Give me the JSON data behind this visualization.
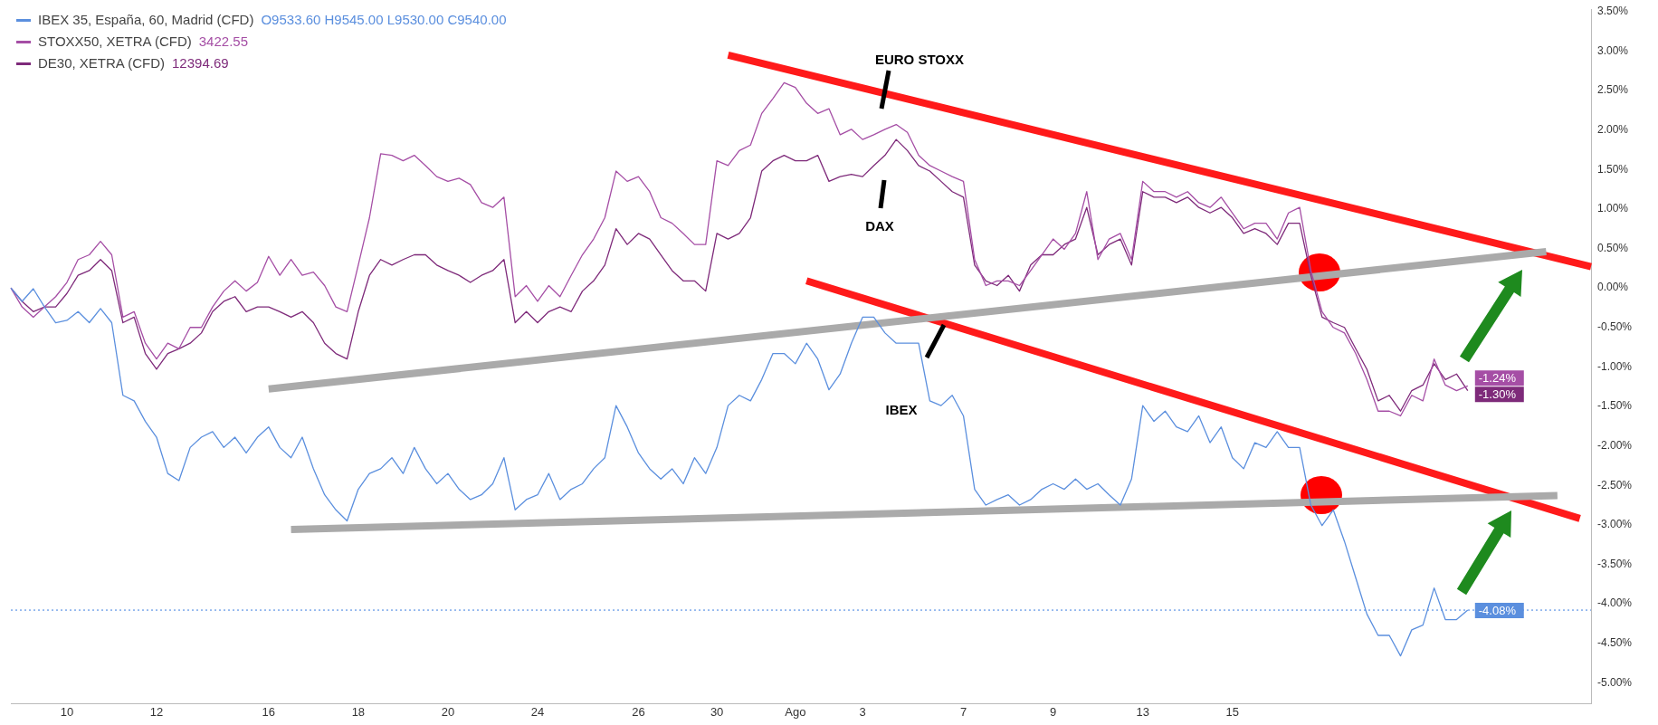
{
  "chart_data": {
    "type": "line",
    "marker": "none",
    "legend": "top left",
    "grid": false,
    "categories": [
      null,
      null,
      null,
      null,
      null,
      "10",
      null,
      null,
      null,
      null,
      null,
      null,
      null,
      "12",
      null,
      null,
      null,
      null,
      null,
      null,
      null,
      null,
      null,
      "16",
      null,
      null,
      null,
      null,
      null,
      null,
      null,
      "18",
      null,
      null,
      null,
      null,
      null,
      null,
      null,
      "20",
      null,
      null,
      null,
      null,
      null,
      null,
      null,
      "24",
      null,
      null,
      null,
      null,
      null,
      null,
      null,
      null,
      "26",
      null,
      null,
      null,
      null,
      null,
      null,
      "30",
      null,
      null,
      null,
      null,
      null,
      null,
      "Ago",
      null,
      null,
      null,
      null,
      null,
      "3",
      null,
      null,
      null,
      null,
      null,
      null,
      null,
      null,
      "7",
      null,
      null,
      null,
      null,
      null,
      null,
      null,
      "9",
      null,
      null,
      null,
      null,
      null,
      null,
      null,
      "13",
      null,
      null,
      null,
      null,
      null,
      null,
      null,
      "15",
      null,
      null,
      null,
      null,
      null,
      null,
      null,
      null,
      null,
      null,
      null,
      null,
      null,
      null,
      null,
      null,
      null,
      null,
      null,
      null,
      null,
      null,
      null,
      null,
      null,
      null,
      null,
      null,
      null,
      null,
      null,
      null
    ],
    "series": [
      {
        "name": "IBEX 35, España, 60, Madrid (CFD)",
        "color": "#5b8fde",
        "values": [
          0,
          -0.17,
          -0.01,
          -0.24,
          -0.44,
          -0.41,
          -0.3,
          -0.44,
          -0.26,
          -0.44,
          -1.36,
          -1.43,
          -1.69,
          -1.89,
          -2.35,
          -2.44,
          -2.02,
          -1.89,
          -1.82,
          -2.02,
          -1.89,
          -2.09,
          -1.89,
          -1.76,
          -2.02,
          -2.15,
          -1.89,
          -2.29,
          -2.62,
          -2.81,
          -2.95,
          -2.55,
          -2.35,
          -2.29,
          -2.15,
          -2.35,
          -2.02,
          -2.29,
          -2.48,
          -2.35,
          -2.55,
          -2.68,
          -2.62,
          -2.48,
          -2.15,
          -2.81,
          -2.68,
          -2.62,
          -2.35,
          -2.68,
          -2.55,
          -2.48,
          -2.29,
          -2.15,
          -1.49,
          -1.76,
          -2.09,
          -2.29,
          -2.42,
          -2.29,
          -2.48,
          -2.15,
          -2.35,
          -2.02,
          -1.49,
          -1.36,
          -1.43,
          -1.16,
          -0.83,
          -0.83,
          -0.96,
          -0.7,
          -0.9,
          -1.29,
          -1.09,
          -0.7,
          -0.37,
          -0.37,
          -0.57,
          -0.7,
          -0.7,
          -0.7,
          -1.43,
          -1.49,
          -1.36,
          -1.62,
          -2.55,
          -2.75,
          -2.68,
          -2.62,
          -2.75,
          -2.68,
          -2.55,
          -2.48,
          -2.55,
          -2.42,
          -2.55,
          -2.48,
          -2.62,
          -2.75,
          -2.42,
          -1.49,
          -1.69,
          -1.56,
          -1.76,
          -1.82,
          -1.62,
          -1.96,
          -1.76,
          -2.15,
          -2.29,
          -1.96,
          -2.02,
          -1.82,
          -2.02,
          -2.02,
          -2.75,
          -3.01,
          -2.81,
          -3.21,
          -3.67,
          -4.13,
          -4.4,
          -4.4,
          -4.66,
          -4.33,
          -4.27,
          -3.8,
          -4.2,
          -4.2,
          -4.08,
          null,
          null,
          null,
          null,
          null,
          null,
          null,
          null,
          null,
          null,
          null
        ],
        "value_labels": [
          null,
          null,
          null,
          null,
          null,
          null,
          null,
          null,
          null,
          null,
          null,
          null,
          null,
          null,
          null,
          null,
          null,
          null,
          null,
          null,
          null,
          null,
          null,
          null,
          null,
          null,
          null,
          null,
          null,
          null,
          null,
          null,
          null,
          null,
          null,
          null,
          null,
          null,
          null,
          null,
          null,
          null,
          null,
          null,
          null,
          null,
          null,
          null,
          null,
          null,
          null,
          null,
          null,
          null,
          null,
          null,
          null,
          null,
          null,
          null,
          null,
          null,
          null,
          null,
          null,
          null,
          null,
          null,
          null,
          null,
          null,
          null,
          null,
          null,
          null,
          null,
          null,
          null,
          null,
          null,
          null,
          null,
          null,
          null,
          null,
          null,
          null,
          null,
          null,
          null,
          null,
          null,
          null,
          null,
          null,
          null,
          null,
          null,
          null,
          null,
          null,
          null,
          null,
          null,
          null,
          null,
          null,
          null,
          null,
          null,
          null,
          null,
          null,
          null,
          null,
          null,
          null,
          null,
          null,
          null,
          null,
          null,
          null,
          null,
          null,
          null,
          null,
          null,
          null,
          null,
          "-4.08%",
          null,
          null,
          null,
          null,
          null,
          null,
          null,
          null,
          null,
          null,
          null
        ]
      },
      {
        "name": "STOXX50, XETRA (CFD)",
        "color": "#a54ea5",
        "values": [
          0,
          -0.24,
          -0.37,
          -0.24,
          -0.11,
          0.07,
          0.36,
          0.42,
          0.59,
          0.42,
          -0.37,
          -0.3,
          -0.7,
          -0.9,
          -0.7,
          -0.77,
          -0.5,
          -0.5,
          -0.24,
          -0.04,
          0.09,
          -0.04,
          0.07,
          0.4,
          0.16,
          0.36,
          0.16,
          0.2,
          0.03,
          -0.24,
          -0.3,
          0.29,
          0.89,
          1.7,
          1.68,
          1.61,
          1.68,
          1.55,
          1.41,
          1.35,
          1.39,
          1.31,
          1.08,
          1.02,
          1.15,
          -0.11,
          0.03,
          -0.17,
          0.03,
          -0.11,
          0.16,
          0.42,
          0.62,
          0.89,
          1.48,
          1.35,
          1.41,
          1.22,
          0.89,
          0.82,
          0.69,
          0.55,
          0.55,
          1.61,
          1.55,
          1.74,
          1.81,
          2.21,
          2.4,
          2.6,
          2.54,
          2.34,
          2.21,
          2.27,
          1.94,
          2.01,
          1.88,
          1.94,
          2.01,
          2.07,
          1.97,
          1.68,
          1.55,
          1.48,
          1.41,
          1.35,
          0.36,
          0.03,
          0.09,
          0.09,
          0.03,
          0.22,
          0.42,
          0.62,
          0.49,
          0.69,
          1.22,
          0.36,
          0.62,
          0.69,
          0.36,
          1.35,
          1.22,
          1.22,
          1.15,
          1.22,
          1.08,
          1.02,
          1.15,
          0.95,
          0.75,
          0.82,
          0.82,
          0.62,
          0.95,
          1.02,
          0.22,
          -0.3,
          -0.5,
          -0.57,
          -0.83,
          -1.16,
          -1.56,
          -1.56,
          -1.62,
          -1.36,
          -1.43,
          -0.9,
          -1.23,
          -1.3,
          -1.24,
          null,
          null,
          null,
          null,
          null,
          null,
          null,
          null,
          null,
          null,
          null
        ],
        "value_labels": [
          null,
          null,
          null,
          null,
          null,
          null,
          null,
          null,
          null,
          null,
          null,
          null,
          null,
          null,
          null,
          null,
          null,
          null,
          null,
          null,
          null,
          null,
          null,
          null,
          null,
          null,
          null,
          null,
          null,
          null,
          null,
          null,
          null,
          null,
          null,
          null,
          null,
          null,
          null,
          null,
          null,
          null,
          null,
          null,
          null,
          null,
          null,
          null,
          null,
          null,
          null,
          null,
          null,
          null,
          null,
          null,
          null,
          null,
          null,
          null,
          null,
          null,
          null,
          null,
          null,
          null,
          null,
          null,
          null,
          null,
          null,
          null,
          null,
          null,
          null,
          null,
          null,
          null,
          null,
          null,
          null,
          null,
          null,
          null,
          null,
          null,
          null,
          null,
          null,
          null,
          null,
          null,
          null,
          null,
          null,
          null,
          null,
          null,
          null,
          null,
          null,
          null,
          null,
          null,
          null,
          null,
          null,
          null,
          null,
          null,
          null,
          null,
          null,
          null,
          null,
          null,
          null,
          null,
          null,
          null,
          null,
          null,
          null,
          null,
          null,
          null,
          null,
          null,
          null,
          null,
          "-1.24%",
          null,
          null,
          null,
          null,
          null,
          null,
          null,
          null,
          null,
          null,
          null
        ]
      },
      {
        "name": "DE30, XETRA (CFD)",
        "color": "#7e2a7a",
        "values": [
          0,
          -0.17,
          -0.3,
          -0.24,
          -0.24,
          -0.07,
          0.16,
          0.22,
          0.36,
          0.22,
          -0.44,
          -0.37,
          -0.83,
          -1.03,
          -0.83,
          -0.77,
          -0.7,
          -0.57,
          -0.3,
          -0.17,
          -0.11,
          -0.3,
          -0.24,
          -0.24,
          -0.3,
          -0.37,
          -0.3,
          -0.44,
          -0.7,
          -0.83,
          -0.9,
          -0.3,
          0.16,
          0.36,
          0.29,
          0.36,
          0.42,
          0.42,
          0.29,
          0.22,
          0.16,
          0.07,
          0.16,
          0.22,
          0.36,
          -0.44,
          -0.3,
          -0.44,
          -0.3,
          -0.24,
          -0.3,
          -0.04,
          0.09,
          0.29,
          0.75,
          0.55,
          0.69,
          0.62,
          0.42,
          0.22,
          0.09,
          0.09,
          -0.04,
          0.69,
          0.62,
          0.69,
          0.89,
          1.48,
          1.61,
          1.68,
          1.61,
          1.61,
          1.68,
          1.35,
          1.41,
          1.44,
          1.41,
          1.55,
          1.68,
          1.88,
          1.74,
          1.55,
          1.48,
          1.35,
          1.22,
          1.15,
          0.29,
          0.09,
          0.03,
          0.16,
          -0.04,
          0.29,
          0.42,
          0.42,
          0.55,
          0.62,
          1.02,
          0.42,
          0.55,
          0.62,
          0.29,
          1.22,
          1.15,
          1.15,
          1.08,
          1.15,
          1.02,
          0.95,
          1.02,
          0.89,
          0.69,
          0.75,
          0.69,
          0.55,
          0.82,
          0.82,
          0.16,
          -0.37,
          -0.44,
          -0.5,
          -0.77,
          -1.03,
          -1.43,
          -1.36,
          -1.56,
          -1.3,
          -1.23,
          -0.96,
          -1.16,
          -1.09,
          -1.3,
          null,
          null,
          null,
          null,
          null,
          null,
          null,
          null,
          null,
          null,
          null
        ],
        "value_labels": [
          null,
          null,
          null,
          null,
          null,
          null,
          null,
          null,
          null,
          null,
          null,
          null,
          null,
          null,
          null,
          null,
          null,
          null,
          null,
          null,
          null,
          null,
          null,
          null,
          null,
          null,
          null,
          null,
          null,
          null,
          null,
          null,
          null,
          null,
          null,
          null,
          null,
          null,
          null,
          null,
          null,
          null,
          null,
          null,
          null,
          null,
          null,
          null,
          null,
          null,
          null,
          null,
          null,
          null,
          null,
          null,
          null,
          null,
          null,
          null,
          null,
          null,
          null,
          null,
          null,
          null,
          null,
          null,
          null,
          null,
          null,
          null,
          null,
          null,
          null,
          null,
          null,
          null,
          null,
          null,
          null,
          null,
          null,
          null,
          null,
          null,
          null,
          null,
          null,
          null,
          null,
          null,
          null,
          null,
          null,
          null,
          null,
          null,
          null,
          null,
          null,
          null,
          null,
          null,
          null,
          null,
          null,
          null,
          null,
          null,
          null,
          null,
          null,
          null,
          null,
          null,
          null,
          null,
          null,
          null,
          null,
          null,
          null,
          null,
          null,
          null,
          null,
          null,
          null,
          null,
          "-1.30%",
          null,
          null,
          null,
          null,
          null,
          null,
          null,
          null,
          null,
          null,
          null
        ]
      },
      {
        "type": "line",
        "color": "#aaaaaa",
        "values": [
          null,
          null,
          null,
          null,
          null,
          null,
          null,
          null,
          null,
          null,
          null,
          null,
          null,
          null,
          null,
          null,
          null,
          null,
          null,
          null,
          null,
          null,
          null,
          -1.28,
          null,
          null,
          null,
          null,
          null,
          null,
          null,
          null,
          null,
          null,
          null,
          null,
          null,
          null,
          null,
          null,
          null,
          null,
          null,
          null,
          null,
          null,
          null,
          null,
          null,
          null,
          null,
          null,
          null,
          null,
          null,
          null,
          null,
          null,
          null,
          null,
          null,
          null,
          null,
          null,
          null,
          null,
          null,
          null,
          null,
          null,
          null,
          null,
          null,
          null,
          null,
          null,
          null,
          null,
          null,
          null,
          null,
          null,
          null,
          null,
          null,
          null,
          null,
          null,
          null,
          null,
          null,
          null,
          null,
          null,
          null,
          null,
          null,
          null,
          null,
          null,
          null,
          null,
          null,
          null,
          null,
          null,
          null,
          null,
          null,
          null,
          null,
          null,
          null,
          null,
          null,
          null,
          null,
          null,
          null,
          null,
          null,
          null,
          null,
          null,
          null,
          null,
          null,
          null,
          null,
          null,
          null,
          null,
          null,
          null,
          null,
          null,
          null,
          0.46,
          null,
          null,
          null,
          null
        ]
      },
      {
        "type": "line",
        "color": "#aaaaaa",
        "values": [
          null,
          null,
          null,
          null,
          null,
          null,
          null,
          null,
          null,
          null,
          null,
          null,
          null,
          null,
          null,
          null,
          null,
          null,
          null,
          null,
          null,
          null,
          null,
          null,
          null,
          -3.06,
          null,
          null,
          null,
          null,
          null,
          null,
          null,
          null,
          null,
          null,
          null,
          null,
          null,
          null,
          null,
          null,
          null,
          null,
          null,
          null,
          null,
          null,
          null,
          null,
          null,
          null,
          null,
          null,
          null,
          null,
          null,
          null,
          null,
          null,
          null,
          null,
          null,
          null,
          null,
          null,
          null,
          null,
          null,
          null,
          null,
          null,
          null,
          null,
          null,
          null,
          null,
          null,
          null,
          null,
          null,
          null,
          null,
          null,
          null,
          null,
          null,
          null,
          null,
          null,
          null,
          null,
          null,
          null,
          null,
          null,
          null,
          null,
          null,
          null,
          null,
          null,
          null,
          null,
          null,
          null,
          null,
          null,
          null,
          null,
          null,
          null,
          null,
          null,
          null,
          null,
          null,
          null,
          null,
          null,
          null,
          null,
          null,
          null,
          null,
          null,
          null,
          null,
          null,
          null,
          null,
          null,
          null,
          null,
          null,
          null,
          null,
          null,
          -2.63,
          null,
          null,
          null
        ]
      },
      {
        "type": "line",
        "color": "#ff1a1a",
        "values": [
          null,
          null,
          null,
          null,
          null,
          null,
          null,
          null,
          null,
          null,
          null,
          null,
          null,
          null,
          null,
          null,
          null,
          null,
          null,
          null,
          null,
          null,
          null,
          null,
          null,
          null,
          null,
          null,
          null,
          null,
          null,
          null,
          null,
          null,
          null,
          null,
          null,
          null,
          null,
          null,
          null,
          null,
          null,
          null,
          null,
          null,
          null,
          null,
          null,
          null,
          null,
          null,
          null,
          null,
          null,
          null,
          null,
          null,
          null,
          null,
          null,
          null,
          null,
          null,
          2.95,
          null,
          null,
          null,
          null,
          null,
          null,
          null,
          null,
          null,
          null,
          null,
          null,
          null,
          null,
          null,
          null,
          null,
          null,
          null,
          null,
          null,
          null,
          null,
          null,
          null,
          null,
          null,
          null,
          null,
          null,
          null,
          null,
          null,
          null,
          null,
          null,
          null,
          null,
          null,
          null,
          null,
          null,
          null,
          null,
          null,
          null,
          null,
          null,
          null,
          null,
          null,
          null,
          null,
          null,
          null,
          null,
          null,
          null,
          null,
          null,
          null,
          null,
          null,
          null,
          null,
          null,
          null,
          null,
          null,
          null,
          null,
          null,
          null,
          null,
          null,
          null,
          0.27
        ]
      },
      {
        "type": "line",
        "color": "#ff1a1a",
        "values": [
          null,
          null,
          null,
          null,
          null,
          null,
          null,
          null,
          null,
          null,
          null,
          null,
          null,
          null,
          null,
          null,
          null,
          null,
          null,
          null,
          null,
          null,
          null,
          null,
          null,
          null,
          null,
          null,
          null,
          null,
          null,
          null,
          null,
          null,
          null,
          null,
          null,
          null,
          null,
          null,
          null,
          null,
          null,
          null,
          null,
          null,
          null,
          null,
          null,
          null,
          null,
          null,
          null,
          null,
          null,
          null,
          null,
          null,
          null,
          null,
          null,
          null,
          null,
          null,
          null,
          null,
          null,
          null,
          null,
          null,
          null,
          0.09,
          null,
          null,
          null,
          null,
          null,
          null,
          null,
          null,
          null,
          null,
          null,
          null,
          null,
          null,
          null,
          null,
          null,
          null,
          null,
          null,
          null,
          null,
          null,
          null,
          null,
          null,
          null,
          null,
          null,
          null,
          null,
          null,
          null,
          null,
          null,
          null,
          null,
          null,
          null,
          null,
          null,
          null,
          null,
          null,
          null,
          null,
          null,
          null,
          null,
          null,
          null,
          null,
          null,
          null,
          null,
          null,
          null,
          null,
          null,
          null,
          null,
          null,
          null,
          null,
          null,
          null,
          null,
          null,
          -2.92,
          null
        ]
      }
    ],
    "ref_lines": [
      {
        "axis": "y",
        "value": -4.08,
        "color": "#3d7ee0",
        "line_style": "dotted"
      }
    ],
    "annotations": [
      "O9533.60 H9545.00 L9530.00 C9540.00",
      "3422.55",
      "12394.69",
      "EURO STOXX",
      "DAX",
      "IBEX"
    ],
    "ylim": [
      -5.26,
      3.53
    ],
    "yticks": [
      {
        "value": 3.5,
        "label": "3.50%"
      },
      {
        "value": 3,
        "label": "3.00%"
      },
      {
        "value": 2.5,
        "label": "2.50%"
      },
      {
        "value": 2,
        "label": "2.00%"
      },
      {
        "value": 1.5,
        "label": "1.50%"
      },
      {
        "value": 1,
        "label": "1.00%"
      },
      {
        "value": 0.5,
        "label": "0.50%"
      },
      {
        "value": 0,
        "label": "0.00%"
      },
      {
        "value": -0.5,
        "label": "-0.50%"
      },
      {
        "value": -1,
        "label": "-1.00%"
      },
      {
        "value": -1.5,
        "label": "-1.50%"
      },
      {
        "value": -2,
        "label": "-2.00%"
      },
      {
        "value": -2.5,
        "label": "-2.50%"
      },
      {
        "value": -3,
        "label": "-3.00%"
      },
      {
        "value": -3.5,
        "label": "-3.50%"
      },
      {
        "value": -4,
        "label": "-4.00%"
      },
      {
        "value": -4.5,
        "label": "-4.50%"
      },
      {
        "value": -5,
        "label": "-5.00%"
      }
    ]
  }
}
